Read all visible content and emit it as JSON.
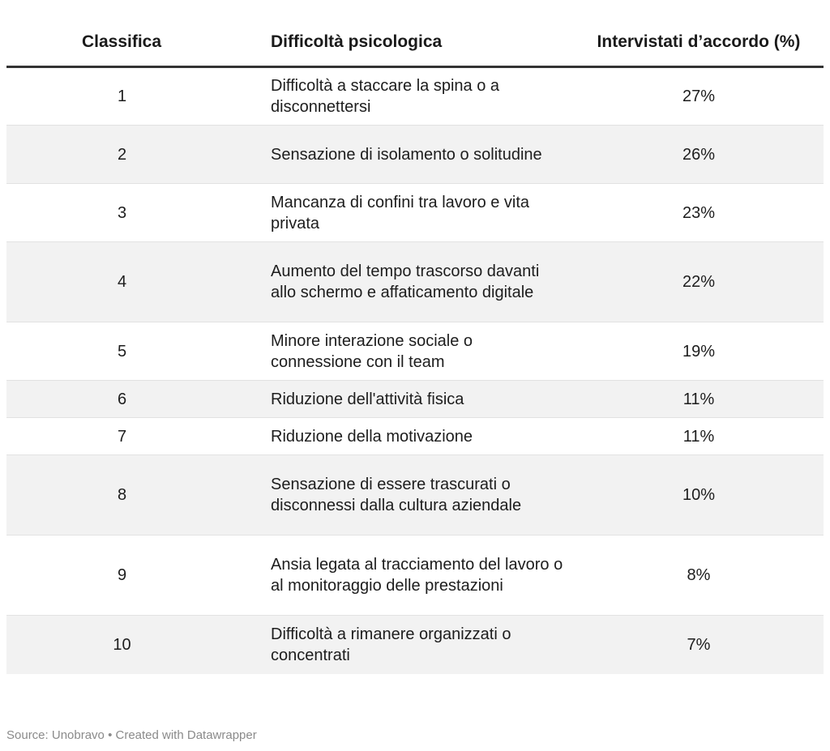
{
  "chart_data": {
    "type": "table",
    "columns": [
      "Classifica",
      "Difficoltà psicologica",
      "Intervistati d’accordo (%)"
    ],
    "rows": [
      {
        "rank": "1",
        "difficulty": "Difficoltà a staccare la spina o a disconnettersi",
        "percent": "27%",
        "value": 27
      },
      {
        "rank": "2",
        "difficulty": "Sensazione di isolamento o solitudine",
        "percent": "26%",
        "value": 26
      },
      {
        "rank": "3",
        "difficulty": "Mancanza di confini tra lavoro e vita privata",
        "percent": "23%",
        "value": 23
      },
      {
        "rank": "4",
        "difficulty": "Aumento del tempo trascorso davanti allo schermo e affaticamento digitale",
        "percent": "22%",
        "value": 22
      },
      {
        "rank": "5",
        "difficulty": "Minore interazione sociale o connessione con il team",
        "percent": "19%",
        "value": 19
      },
      {
        "rank": "6",
        "difficulty": "Riduzione dell'attività fisica",
        "percent": "11%",
        "value": 11
      },
      {
        "rank": "7",
        "difficulty": "Riduzione della motivazione",
        "percent": "11%",
        "value": 11
      },
      {
        "rank": "8",
        "difficulty": "Sensazione di essere trascurati o disconnessi dalla cultura aziendale",
        "percent": "10%",
        "value": 10
      },
      {
        "rank": "9",
        "difficulty": "Ansia legata al tracciamento del lavoro o al monitoraggio delle prestazioni",
        "percent": "8%",
        "value": 8
      },
      {
        "rank": "10",
        "difficulty": "Difficoltà a rimanere organizzati o concentrati",
        "percent": "7%",
        "value": 7
      }
    ],
    "stripe_color": "#f2f2f2",
    "header_rule_color": "#333333"
  },
  "footer": {
    "source": "Source: Unobravo • Created with Datawrapper"
  }
}
